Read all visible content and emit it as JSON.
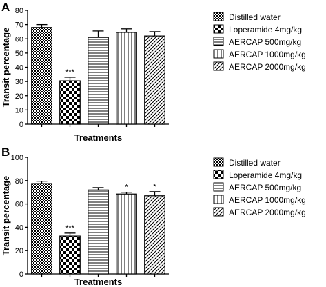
{
  "chart_data": [
    {
      "type": "bar",
      "panel_label": "A",
      "categories": [
        "Distilled water",
        "Loperamide 4mg/kg",
        "AERCAP 500mg/kg",
        "AERCAP 1000mg/kg",
        "AERCAP 2000mg/kg"
      ],
      "values": [
        68,
        30.5,
        61,
        64.5,
        62
      ],
      "errors": [
        2,
        2.5,
        4.5,
        2.5,
        3
      ],
      "significance": [
        "",
        "***",
        "",
        "",
        ""
      ],
      "patterns": [
        "diamond-check",
        "checker",
        "horizontal",
        "vertical",
        "diagonal"
      ],
      "xlabel": "Treatments",
      "ylabel": "Transit percentage",
      "ylim": [
        0,
        80
      ],
      "yticks": [
        0,
        10,
        20,
        30,
        40,
        50,
        60,
        70,
        80
      ],
      "legend": [
        "Distilled water",
        "Loperamide 4mg/kg",
        "AERCAP 500mg/kg",
        "AERCAP 1000mg/kg",
        "AERCAP 2000mg/kg"
      ],
      "legend_position": "right",
      "grid": false
    },
    {
      "type": "bar",
      "panel_label": "B",
      "categories": [
        "Distilled water",
        "Loperamide 4mg/kg",
        "AERCAP 500mg/kg",
        "AERCAP 1000mg/kg",
        "AERCAP 2000mg/kg"
      ],
      "values": [
        77.5,
        32.5,
        72,
        68.5,
        67
      ],
      "errors": [
        2,
        2.5,
        2,
        1.5,
        3.5
      ],
      "significance": [
        "",
        "***",
        "",
        "*",
        "*"
      ],
      "patterns": [
        "diamond-check",
        "checker",
        "horizontal",
        "vertical",
        "diagonal"
      ],
      "xlabel": "Treatments",
      "ylabel": "Transit percentage",
      "ylim": [
        0,
        100
      ],
      "yticks": [
        0,
        20,
        40,
        60,
        80,
        100
      ],
      "legend": [
        "Distilled water",
        "Loperamide 4mg/kg",
        "AERCAP 500mg/kg",
        "AERCAP 1000mg/kg",
        "AERCAP 2000mg/kg"
      ],
      "legend_position": "right",
      "grid": false
    }
  ]
}
